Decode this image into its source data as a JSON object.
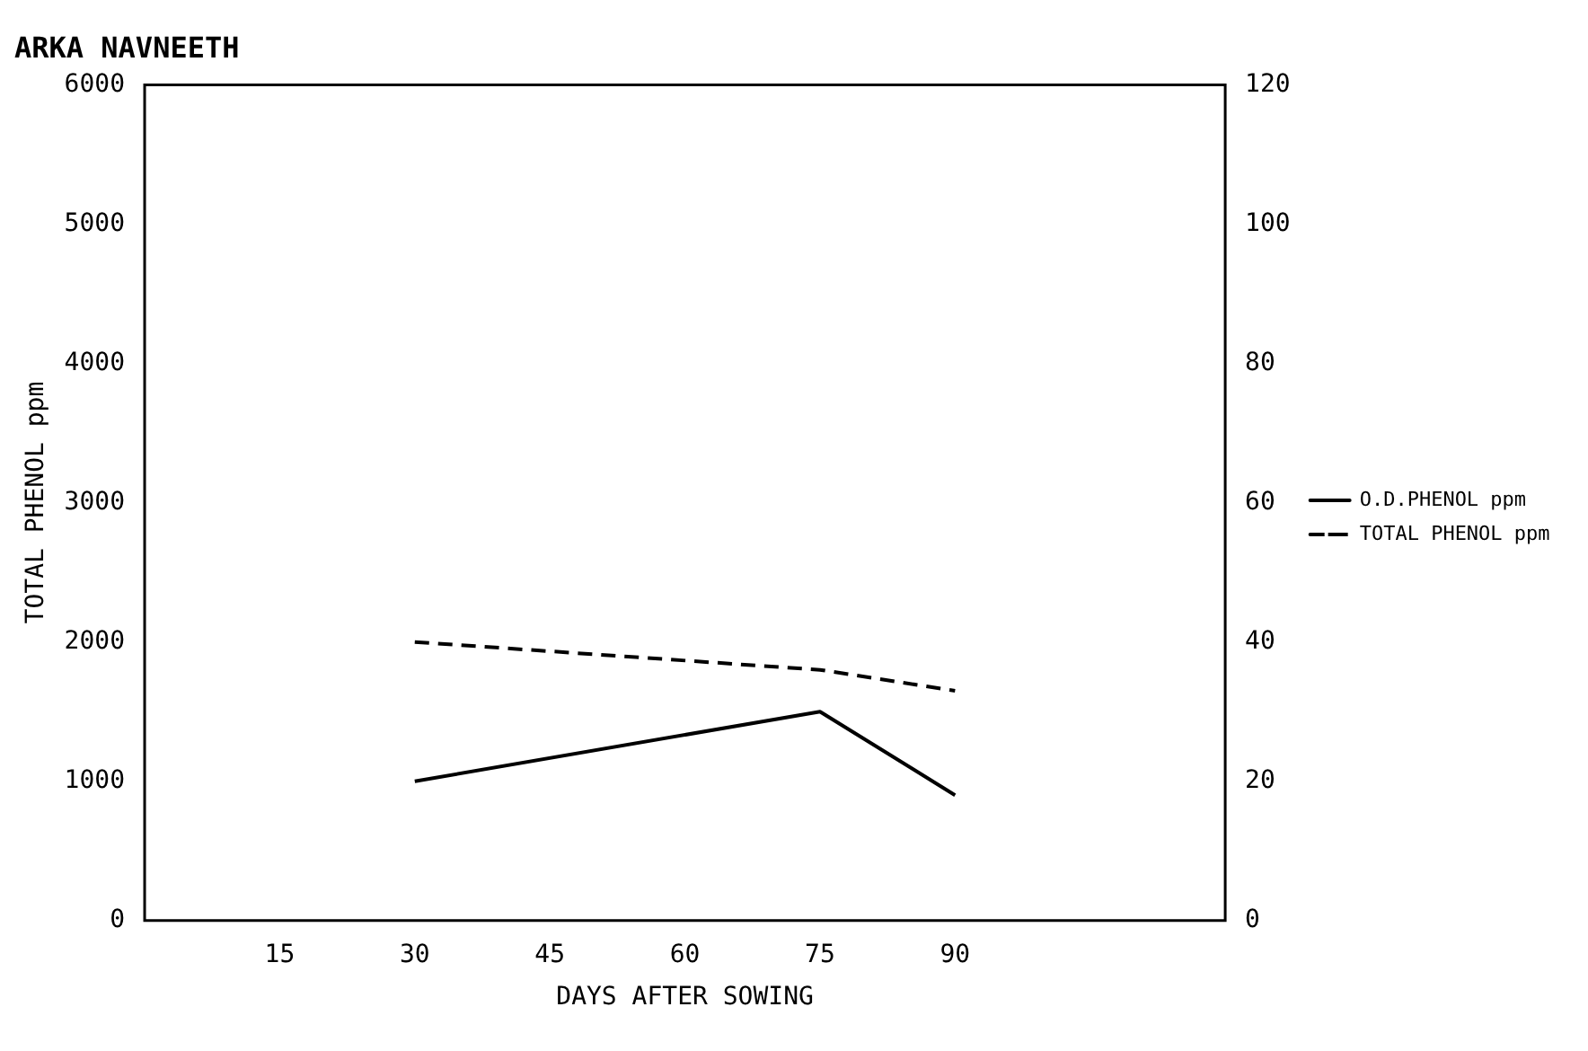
{
  "chart_data": {
    "type": "line",
    "title": "ARKA NAVNEETH",
    "xlabel": "DAYS AFTER SOWING",
    "ylabel": "TOTAL PHENOL ppm",
    "x": [
      30,
      75,
      90
    ],
    "xlim": [
      0,
      120
    ],
    "xticks": [
      15,
      30,
      45,
      60,
      75,
      90
    ],
    "ylim": [
      0,
      6000
    ],
    "yticks": [
      0,
      1000,
      2000,
      3000,
      4000,
      5000,
      6000
    ],
    "y2lim": [
      0,
      120
    ],
    "y2ticks": [
      0,
      20,
      40,
      60,
      80,
      100,
      120
    ],
    "series": [
      {
        "name": "O.D.PHENOL ppm",
        "color": "#000000",
        "values": [
          20,
          30,
          18
        ],
        "axis": "y2",
        "line_style": "solid"
      },
      {
        "name": "TOTAL PHENOL ppm",
        "color": "#000000",
        "values": [
          2000,
          1800,
          1650
        ],
        "line_style": "dashed"
      }
    ],
    "marker": "none",
    "grid": false,
    "legend": "right"
  }
}
